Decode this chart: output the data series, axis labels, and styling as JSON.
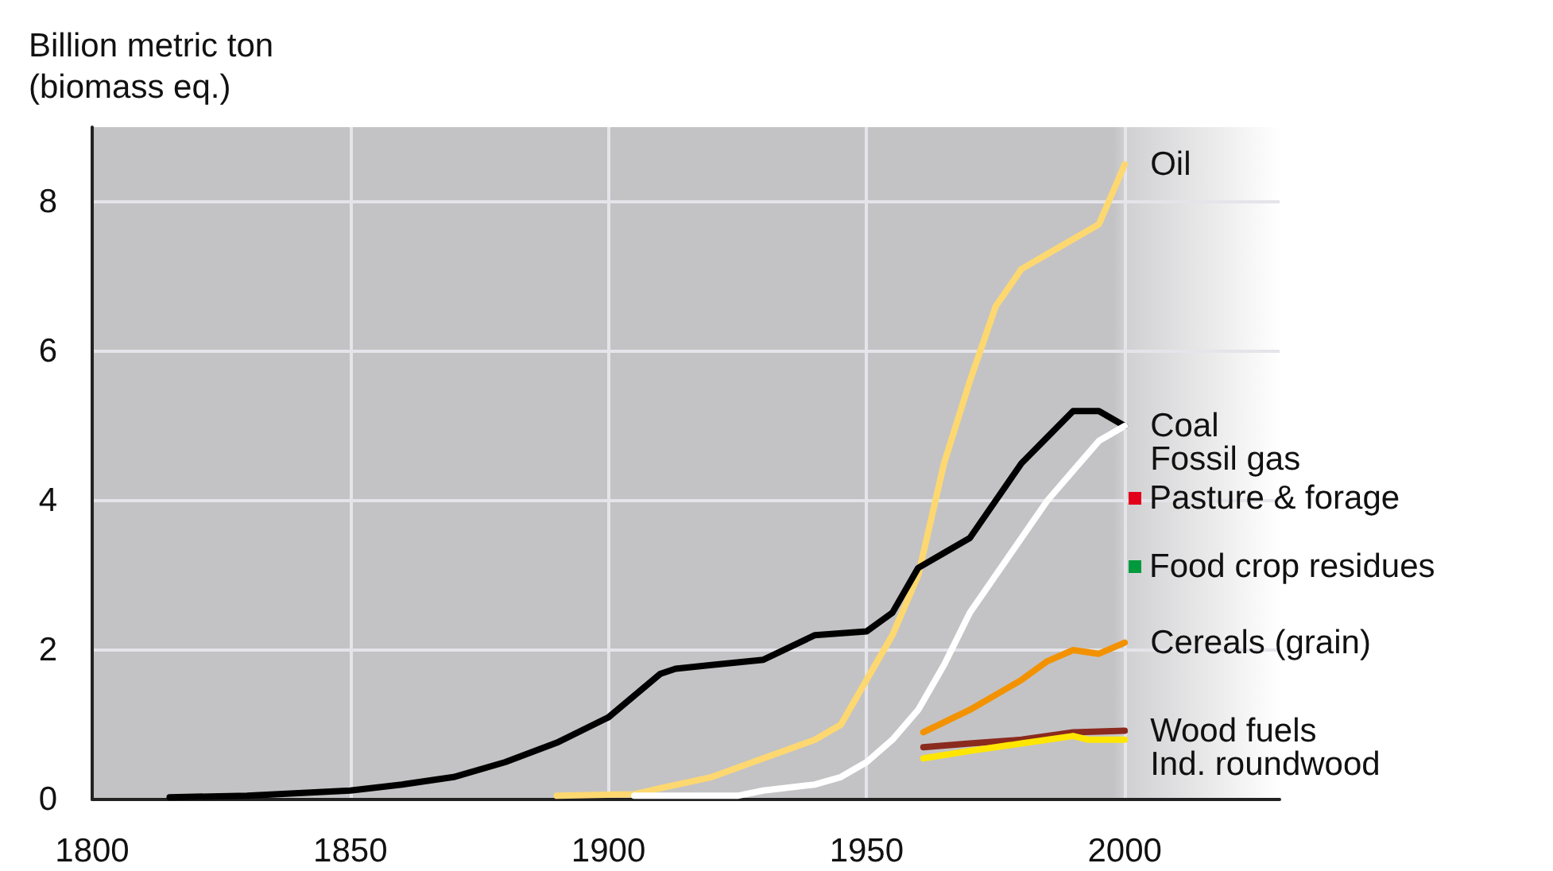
{
  "chart_data": {
    "type": "line",
    "ylabel": "Billion metric ton\n(biomass eq.)",
    "xlim": [
      1800,
      2030
    ],
    "xticks": [
      1800,
      1850,
      1900,
      1950,
      2000
    ],
    "ylim": [
      0,
      9
    ],
    "yticks": [
      0,
      2,
      4,
      6,
      8
    ],
    "grid": true,
    "marker": "none",
    "line_style": "solid",
    "legend": "right",
    "series": [
      {
        "name": "Oil",
        "color": "#fdd870",
        "x": [
          1890,
          1905,
          1910,
          1920,
          1930,
          1940,
          1945,
          1950,
          1955,
          1960,
          1965,
          1970,
          1975,
          1980,
          1985,
          1990,
          1995,
          2000
        ],
        "values": [
          0.05,
          0.07,
          0.15,
          0.3,
          0.55,
          0.8,
          1.0,
          1.6,
          2.2,
          3.0,
          4.5,
          5.6,
          6.6,
          7.1,
          7.3,
          7.5,
          7.7,
          8.5
        ]
      },
      {
        "name": "Coal",
        "color": "#000000",
        "x": [
          1815,
          1830,
          1850,
          1860,
          1870,
          1880,
          1890,
          1900,
          1910,
          1913,
          1920,
          1930,
          1940,
          1950,
          1955,
          1960,
          1965,
          1970,
          1975,
          1980,
          1985,
          1990,
          1995,
          2000
        ],
        "values": [
          0.03,
          0.05,
          0.12,
          0.2,
          0.3,
          0.5,
          0.76,
          1.1,
          1.68,
          1.75,
          1.8,
          1.87,
          2.2,
          2.25,
          2.5,
          3.1,
          3.3,
          3.5,
          4.0,
          4.5,
          4.85,
          5.2,
          5.2,
          5.0
        ]
      },
      {
        "name": "Fossil gas",
        "color": "#ffffff",
        "x": [
          1905,
          1925,
          1930,
          1940,
          1945,
          1950,
          1955,
          1960,
          1965,
          1970,
          1975,
          1980,
          1985,
          1990,
          1995,
          2000
        ],
        "values": [
          0.05,
          0.05,
          0.12,
          0.2,
          0.3,
          0.5,
          0.8,
          1.2,
          1.8,
          2.5,
          3.0,
          3.5,
          4.0,
          4.4,
          4.8,
          5.0
        ]
      },
      {
        "name": "Pasture & forage",
        "color": "#e2001a"
      },
      {
        "name": "Food crop residues",
        "color": "#009a3e"
      },
      {
        "name": "Cereals (grain)",
        "color": "#f39200",
        "x": [
          1961,
          1970,
          1980,
          1985,
          1990,
          1995,
          2000
        ],
        "values": [
          0.9,
          1.2,
          1.6,
          1.85,
          2.0,
          1.95,
          2.1
        ]
      },
      {
        "name": "Wood fuels",
        "color": "#8b2a1e",
        "x": [
          1961,
          1970,
          1980,
          1990,
          2000
        ],
        "values": [
          0.7,
          0.75,
          0.8,
          0.9,
          0.92
        ]
      },
      {
        "name": "Ind. roundwood",
        "color": "#ffe600",
        "x": [
          1961,
          1970,
          1980,
          1990,
          1993,
          2000
        ],
        "values": [
          0.55,
          0.65,
          0.75,
          0.85,
          0.8,
          0.8
        ]
      }
    ]
  }
}
